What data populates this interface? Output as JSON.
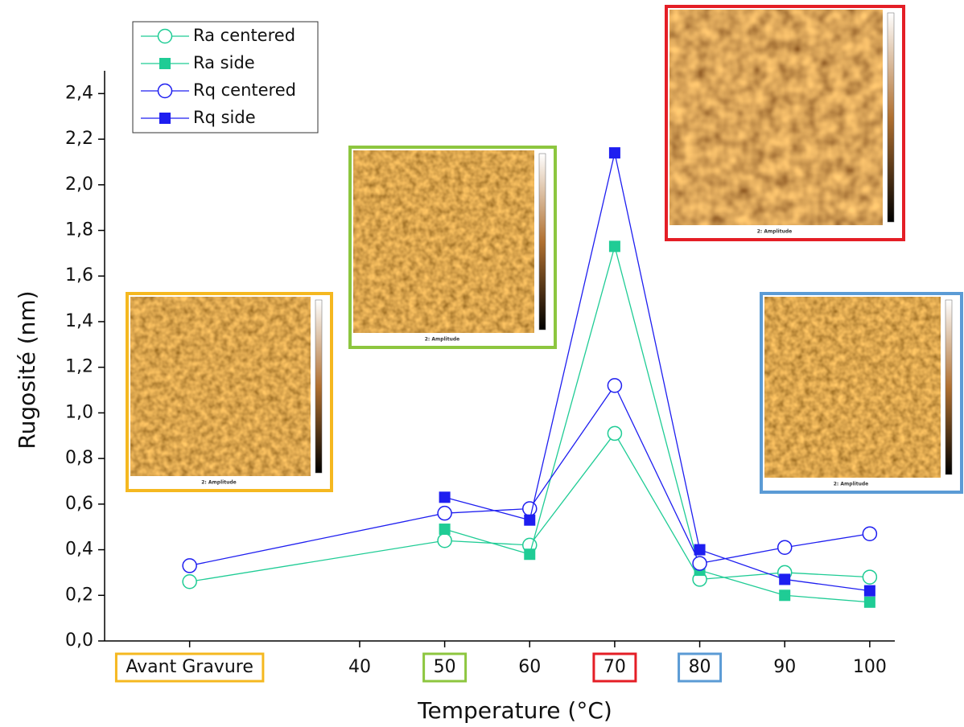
{
  "chart_data": {
    "type": "line",
    "x_label": "Temperature (°C)",
    "y_label": "Rugosité (nm)",
    "x": [
      20,
      50,
      60,
      70,
      80,
      90,
      100
    ],
    "series": [
      {
        "name": "Ra centered",
        "color": "#1fcc95",
        "marker": "open-circle",
        "values": [
          0.26,
          0.44,
          0.42,
          0.91,
          0.27,
          0.3,
          0.28
        ]
      },
      {
        "name": "Ra side",
        "color": "#1fcc95",
        "marker": "square",
        "values": [
          null,
          0.49,
          0.38,
          1.73,
          0.31,
          0.2,
          0.17
        ]
      },
      {
        "name": "Rq centered",
        "color": "#1e1ef0",
        "marker": "open-circle",
        "values": [
          0.33,
          0.56,
          0.58,
          1.12,
          0.34,
          0.41,
          0.47
        ]
      },
      {
        "name": "Rq side",
        "color": "#1e1ef0",
        "marker": "square",
        "values": [
          null,
          0.63,
          0.53,
          2.14,
          0.4,
          0.27,
          0.22
        ]
      }
    ],
    "xlim": [
      10,
      102
    ],
    "ylim": [
      0,
      2.5
    ],
    "xticks": [
      {
        "value": 20,
        "label": "Avant Gravure",
        "frame": "#f5b820"
      },
      40,
      {
        "value": 50,
        "label": "50",
        "frame": "#8dc63f"
      },
      60,
      {
        "value": 70,
        "label": "70",
        "frame": "#e41e26"
      },
      {
        "value": 80,
        "label": "80",
        "frame": "#5b9bd5"
      },
      90,
      100
    ],
    "yticks": [
      {
        "value": 0,
        "label": "0,0"
      },
      {
        "value": 0.2,
        "label": "0,2"
      },
      {
        "value": 0.4,
        "label": "0,4"
      },
      {
        "value": 0.6,
        "label": "0,6"
      },
      {
        "value": 0.8,
        "label": "0,8"
      },
      {
        "value": 1.0,
        "label": "1,0"
      },
      {
        "value": 1.2,
        "label": "1,2"
      },
      {
        "value": 1.4,
        "label": "1,4"
      },
      {
        "value": 1.6,
        "label": "1,6"
      },
      {
        "value": 1.8,
        "label": "1,8"
      },
      {
        "value": 2.0,
        "label": "2,0"
      },
      {
        "value": 2.2,
        "label": "2,2"
      },
      {
        "value": 2.4,
        "label": "2,4"
      }
    ],
    "legend": "upper left",
    "insets": [
      {
        "caption": "2: Amplitude",
        "color": "#f5b820"
      },
      {
        "caption": "2: Amplitude",
        "color": "#8dc63f"
      },
      {
        "caption": "2: Amplitude",
        "color": "#e41e26"
      },
      {
        "caption": "2: Amplitude",
        "color": "#5b9bd5"
      }
    ]
  }
}
